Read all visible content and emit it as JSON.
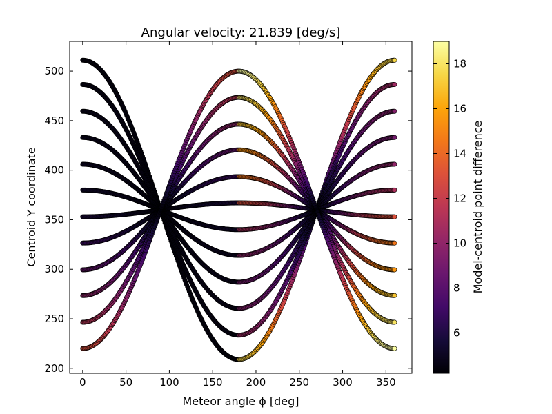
{
  "chart_data": {
    "type": "scatter",
    "title": "Angular velocity: 21.839 [deg/s]",
    "xlabel": "Meteor angle ϕ [deg]",
    "ylabel": "Centroid Y coordinate",
    "xlim": [
      -15,
      380
    ],
    "ylim": [
      195,
      530
    ],
    "xticks": [
      0,
      50,
      100,
      150,
      200,
      250,
      300,
      350
    ],
    "yticks": [
      200,
      250,
      300,
      350,
      400,
      450,
      500
    ],
    "grid": false,
    "colormap": "inferno",
    "colorbar": {
      "label": "Model-centroid point difference",
      "range": [
        4.2,
        19
      ],
      "ticks": [
        6,
        8,
        10,
        12,
        14,
        16,
        18
      ]
    },
    "series": [
      {
        "y_at_0": 515,
        "y_at_180": 213,
        "diff_at_0": 4.5,
        "diff_at_360": 17.5
      },
      {
        "y_at_0": 491,
        "y_at_180": 238,
        "diff_at_0": 4.7,
        "diff_at_360": 10.5
      },
      {
        "y_at_0": 463,
        "y_at_180": 264,
        "diff_at_0": 4.9,
        "diff_at_360": 9.5
      },
      {
        "y_at_0": 436,
        "y_at_180": 290,
        "diff_at_0": 5.0,
        "diff_at_360": 9.0
      },
      {
        "y_at_0": 408,
        "y_at_180": 316,
        "diff_at_0": 5.2,
        "diff_at_360": 10.0
      },
      {
        "y_at_0": 381,
        "y_at_180": 341,
        "diff_at_0": 5.5,
        "diff_at_360": 11.0
      },
      {
        "y_at_0": 353,
        "y_at_180": 367,
        "diff_at_0": 6.0,
        "diff_at_360": 13.0
      },
      {
        "y_at_0": 325,
        "y_at_180": 392,
        "diff_at_0": 7.0,
        "diff_at_360": 14.5
      },
      {
        "y_at_0": 297,
        "y_at_180": 418,
        "diff_at_0": 8.5,
        "diff_at_360": 15.5
      },
      {
        "y_at_0": 270,
        "y_at_180": 443,
        "diff_at_0": 10.0,
        "diff_at_360": 17.0
      },
      {
        "y_at_0": 242,
        "y_at_180": 469,
        "diff_at_0": 11.5,
        "diff_at_360": 18.0
      },
      {
        "y_at_0": 215,
        "y_at_180": 495,
        "diff_at_0": 13.0,
        "diff_at_360": 19.0
      }
    ],
    "x_range": [
      0,
      360
    ],
    "crossing_points": [
      [
        90,
        360
      ],
      [
        270,
        360
      ]
    ]
  }
}
